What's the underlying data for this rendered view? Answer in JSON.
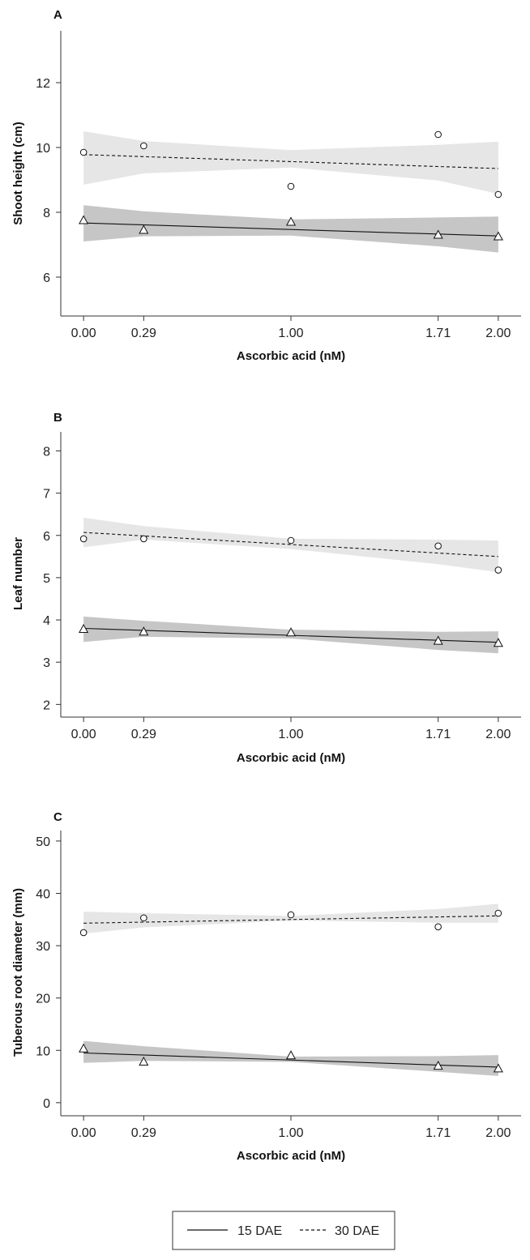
{
  "chart_data": [
    {
      "type": "scatter",
      "panel": "A",
      "xlabel": "Ascorbic acid (nM)",
      "ylabel": "Shoot height (cm)",
      "x_ticks": [
        0.0,
        0.29,
        1.0,
        1.71,
        2.0
      ],
      "x_tick_labels": [
        "0.00",
        "0.29",
        "1.00",
        "1.71",
        "2.00"
      ],
      "y_ticks": [
        6,
        8,
        10,
        12
      ],
      "y_tick_labels": [
        "6",
        "8",
        "10",
        "12"
      ],
      "xlim": [
        -0.11,
        2.11
      ],
      "ylim": [
        4.8,
        13.6
      ],
      "grid": false,
      "series": [
        {
          "name": "15 DAE",
          "marker": "triangle",
          "line": "solid",
          "band_color": "#c6c6c6",
          "x": [
            0.0,
            0.29,
            1.0,
            1.71,
            2.0
          ],
          "values": [
            7.75,
            7.45,
            7.7,
            7.3,
            7.25
          ],
          "fit": [
            7.67,
            7.27
          ],
          "ci_upper": [
            8.22,
            8.03,
            7.78,
            7.84,
            7.87
          ],
          "ci_lower": [
            7.1,
            7.26,
            7.28,
            6.95,
            6.76
          ]
        },
        {
          "name": "30 DAE",
          "marker": "circle",
          "line": "dashed",
          "band_color": "#e6e6e6",
          "x": [
            0.0,
            0.29,
            1.0,
            1.71,
            2.0
          ],
          "values": [
            9.85,
            10.05,
            8.8,
            10.4,
            8.55
          ],
          "fit": [
            9.78,
            9.35
          ],
          "ci_upper": [
            10.5,
            10.2,
            9.92,
            10.08,
            10.18
          ],
          "ci_lower": [
            8.85,
            9.2,
            9.38,
            8.98,
            8.57
          ]
        }
      ]
    },
    {
      "type": "scatter",
      "panel": "B",
      "xlabel": "Ascorbic acid (nM)",
      "ylabel": "Leaf number",
      "x_ticks": [
        0.0,
        0.29,
        1.0,
        1.71,
        2.0
      ],
      "x_tick_labels": [
        "0.00",
        "0.29",
        "1.00",
        "1.71",
        "2.00"
      ],
      "y_ticks": [
        2,
        3,
        4,
        5,
        6,
        7,
        8
      ],
      "y_tick_labels": [
        "2",
        "3",
        "4",
        "5",
        "6",
        "7",
        "8"
      ],
      "xlim": [
        -0.11,
        2.11
      ],
      "ylim": [
        1.7,
        8.45
      ],
      "grid": false,
      "series": [
        {
          "name": "15 DAE",
          "marker": "triangle",
          "line": "solid",
          "band_color": "#c6c6c6",
          "x": [
            0.0,
            0.29,
            1.0,
            1.71,
            2.0
          ],
          "values": [
            3.78,
            3.72,
            3.7,
            3.5,
            3.45
          ],
          "fit": [
            3.8,
            3.47
          ],
          "ci_upper": [
            4.08,
            3.98,
            3.77,
            3.72,
            3.73
          ],
          "ci_lower": [
            3.48,
            3.6,
            3.56,
            3.29,
            3.21
          ]
        },
        {
          "name": "30 DAE",
          "marker": "circle",
          "line": "dashed",
          "band_color": "#e6e6e6",
          "x": [
            0.0,
            0.29,
            1.0,
            1.71,
            2.0
          ],
          "values": [
            5.92,
            5.92,
            5.88,
            5.75,
            5.18
          ],
          "fit": [
            6.07,
            5.5
          ],
          "ci_upper": [
            6.42,
            6.22,
            5.92,
            5.9,
            5.88
          ],
          "ci_lower": [
            5.72,
            5.9,
            5.68,
            5.32,
            5.13
          ]
        }
      ]
    },
    {
      "type": "scatter",
      "panel": "C",
      "xlabel": "Ascorbic acid (nM)",
      "ylabel": "Tuberous root diameter (mm)",
      "x_ticks": [
        0.0,
        0.29,
        1.0,
        1.71,
        2.0
      ],
      "x_tick_labels": [
        "0.00",
        "0.29",
        "1.00",
        "1.71",
        "2.00"
      ],
      "y_ticks": [
        0,
        10,
        20,
        30,
        40,
        50
      ],
      "y_tick_labels": [
        "0",
        "10",
        "20",
        "30",
        "40",
        "50"
      ],
      "xlim": [
        -0.11,
        2.11
      ],
      "ylim": [
        -2.5,
        52
      ],
      "grid": false,
      "series": [
        {
          "name": "15 DAE",
          "marker": "triangle",
          "line": "solid",
          "band_color": "#c6c6c6",
          "x": [
            0.0,
            0.29,
            1.0,
            1.71,
            2.0
          ],
          "values": [
            10.3,
            7.8,
            9.0,
            7.0,
            6.5
          ],
          "fit": [
            9.5,
            6.8
          ],
          "ci_upper": [
            11.8,
            10.8,
            8.8,
            8.9,
            9.1
          ],
          "ci_lower": [
            7.6,
            8.0,
            7.8,
            5.9,
            5.1
          ]
        },
        {
          "name": "30 DAE",
          "marker": "circle",
          "line": "dashed",
          "band_color": "#e6e6e6",
          "x": [
            0.0,
            0.29,
            1.0,
            1.71,
            2.0
          ],
          "values": [
            32.5,
            35.3,
            35.9,
            33.6,
            36.2
          ],
          "fit": [
            34.3,
            35.7
          ],
          "ci_upper": [
            36.5,
            36.2,
            35.7,
            37.0,
            38.0
          ],
          "ci_lower": [
            32.3,
            33.5,
            34.8,
            34.4,
            34.4
          ]
        }
      ]
    }
  ],
  "legend": {
    "items": [
      {
        "label": "15 DAE",
        "line": "solid"
      },
      {
        "label": "30 DAE",
        "line": "dashed"
      }
    ]
  }
}
